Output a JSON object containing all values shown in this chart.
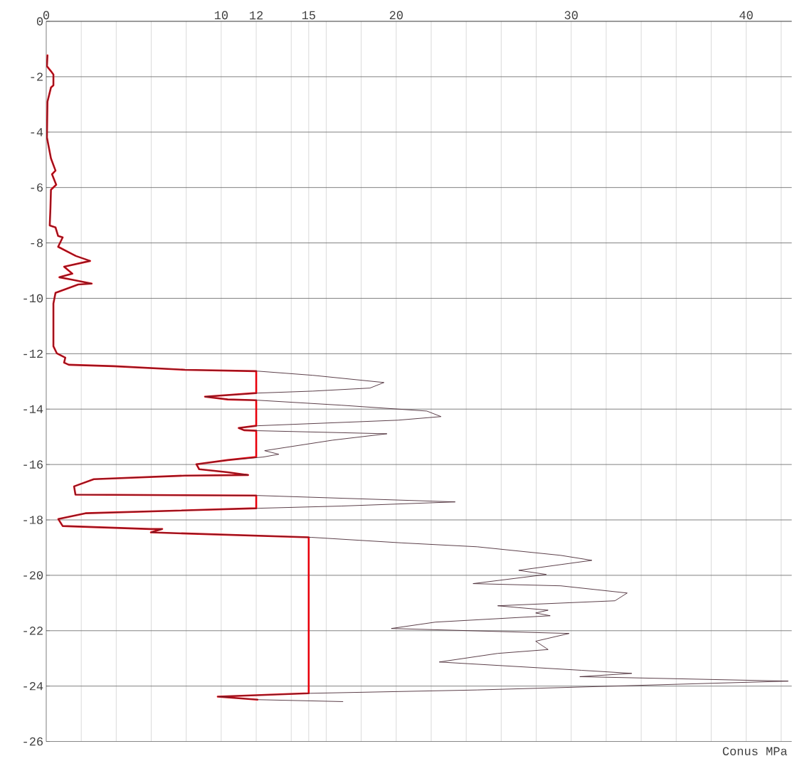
{
  "chart_data": {
    "type": "line",
    "xlabel": "Conus MPa",
    "grid": true,
    "xlim": [
      0,
      42.6
    ],
    "ylim": [
      -26,
      0
    ],
    "xticks": [
      0,
      {
        "value": 2,
        "label": null
      },
      {
        "value": 4,
        "label": null
      },
      {
        "value": 6,
        "label": null
      },
      {
        "value": 8,
        "label": null
      },
      10,
      12,
      {
        "value": 14,
        "label": null
      },
      15,
      {
        "value": 16,
        "label": null
      },
      {
        "value": 18,
        "label": null
      },
      20,
      {
        "value": 22,
        "label": null
      },
      {
        "value": 24,
        "label": null
      },
      {
        "value": 26,
        "label": null
      },
      {
        "value": 28,
        "label": null
      },
      30,
      {
        "value": 32,
        "label": null
      },
      {
        "value": 34,
        "label": null
      },
      {
        "value": 36,
        "label": null
      },
      {
        "value": 38,
        "label": null
      },
      40,
      {
        "value": 42,
        "label": null
      }
    ],
    "yticks": [
      0,
      -2,
      -4,
      -6,
      -8,
      -10,
      -12,
      -14,
      -16,
      -18,
      -20,
      -22,
      -24,
      -26
    ],
    "series": [
      {
        "color": "#4a2a35",
        "x": [
          0.07,
          0.04,
          0.27,
          0.41,
          0.41,
          0.27,
          0.07,
          0.04,
          0.27,
          0.53,
          0.33,
          0.57,
          0.27,
          0.24,
          0.2,
          0.53,
          0.68,
          0.94,
          0.68,
          1.69,
          2.51,
          1.02,
          1.49,
          0.75,
          1.42,
          2.6,
          1.83,
          0.53,
          0.41,
          0.41,
          0.61,
          1.09,
          1.02,
          1.29,
          3.86,
          7.93,
          12.11,
          15.24,
          19.3,
          18.5,
          15.24,
          12.11,
          9.07,
          10.37,
          12.11,
          16.87,
          21.75,
          22.56,
          20.1,
          12.11,
          11.0,
          11.3,
          12.11,
          19.47,
          16.38,
          12.48,
          13.29,
          12.4,
          10.37,
          8.58,
          8.74,
          10.37,
          11.54,
          7.93,
          2.72,
          1.59,
          1.67,
          12.11,
          23.37,
          16.87,
          12.11,
          2.24,
          0.69,
          0.94,
          5.98,
          6.63,
          5.98,
          15.16,
          20.33,
          24.62,
          29.4,
          31.18,
          27.0,
          28.58,
          24.39,
          29.4,
          33.2,
          32.5,
          25.8,
          28.68,
          27.97,
          28.8,
          22.24,
          19.72,
          29.88,
          27.97,
          28.68,
          25.8,
          22.46,
          30.6,
          33.46,
          30.49,
          42.4,
          24.62,
          15.12,
          9.8,
          12.07,
          16.95
        ],
        "values": [
          -1.23,
          -1.62,
          -1.8,
          -1.92,
          -2.31,
          -2.39,
          -2.9,
          -4.19,
          -4.95,
          -5.39,
          -5.52,
          -5.9,
          -6.08,
          -6.75,
          -7.37,
          -7.44,
          -7.75,
          -7.8,
          -8.14,
          -8.47,
          -8.65,
          -8.86,
          -9.11,
          -9.24,
          -9.32,
          -9.47,
          -9.5,
          -9.8,
          -10.19,
          -11.73,
          -11.99,
          -12.14,
          -12.32,
          -12.4,
          -12.45,
          -12.58,
          -12.63,
          -12.78,
          -13.04,
          -13.24,
          -13.35,
          -13.42,
          -13.55,
          -13.65,
          -13.68,
          -13.86,
          -14.07,
          -14.27,
          -14.4,
          -14.6,
          -14.68,
          -14.76,
          -14.78,
          -14.89,
          -15.12,
          -15.5,
          -15.63,
          -15.73,
          -15.84,
          -15.99,
          -16.17,
          -16.28,
          -16.38,
          -16.4,
          -16.53,
          -16.79,
          -17.09,
          -17.12,
          -17.35,
          -17.5,
          -17.58,
          -17.76,
          -17.97,
          -18.22,
          -18.33,
          -18.33,
          -18.45,
          -18.63,
          -18.83,
          -18.97,
          -19.28,
          -19.46,
          -19.82,
          -19.97,
          -20.3,
          -20.38,
          -20.64,
          -20.92,
          -21.1,
          -21.26,
          -21.36,
          -21.46,
          -21.69,
          -21.92,
          -22.1,
          -22.38,
          -22.68,
          -22.82,
          -23.13,
          -23.43,
          -23.54,
          -23.66,
          -23.82,
          -24.14,
          -24.26,
          -24.38,
          -24.49,
          -24.56
        ]
      },
      {
        "color": "#e8000b",
        "x": [
          0.07,
          0.04,
          0.27,
          0.41,
          0.41,
          0.27,
          0.07,
          0.04,
          0.27,
          0.53,
          0.33,
          0.57,
          0.27,
          0.24,
          0.2,
          0.53,
          0.68,
          0.94,
          0.68,
          1.69,
          2.51,
          1.02,
          1.49,
          0.75,
          1.42,
          2.6,
          1.83,
          0.53,
          0.41,
          0.41,
          0.61,
          1.09,
          1.02,
          1.29,
          3.86,
          7.93,
          12,
          12,
          9.07,
          10.37,
          12,
          12,
          11.0,
          11.3,
          12,
          12,
          10.37,
          8.58,
          8.74,
          10.37,
          11.54,
          7.93,
          2.72,
          1.59,
          1.67,
          12,
          12,
          2.24,
          0.69,
          0.94,
          5.98,
          6.63,
          5.98,
          15,
          15,
          9.8,
          12.07
        ],
        "values": [
          -1.23,
          -1.62,
          -1.8,
          -1.92,
          -2.31,
          -2.39,
          -2.9,
          -4.19,
          -4.95,
          -5.39,
          -5.52,
          -5.9,
          -6.08,
          -6.75,
          -7.37,
          -7.44,
          -7.75,
          -7.8,
          -8.14,
          -8.47,
          -8.65,
          -8.86,
          -9.11,
          -9.24,
          -9.32,
          -9.47,
          -9.5,
          -9.8,
          -10.19,
          -11.73,
          -11.99,
          -12.14,
          -12.32,
          -12.4,
          -12.45,
          -12.58,
          -12.63,
          -13.42,
          -13.55,
          -13.65,
          -13.68,
          -14.6,
          -14.68,
          -14.76,
          -14.78,
          -15.73,
          -15.84,
          -15.99,
          -16.17,
          -16.28,
          -16.38,
          -16.4,
          -16.53,
          -16.79,
          -17.09,
          -17.12,
          -17.58,
          -17.76,
          -17.97,
          -18.22,
          -18.33,
          -18.33,
          -18.45,
          -18.63,
          -24.26,
          -24.38,
          -24.49
        ]
      }
    ]
  }
}
